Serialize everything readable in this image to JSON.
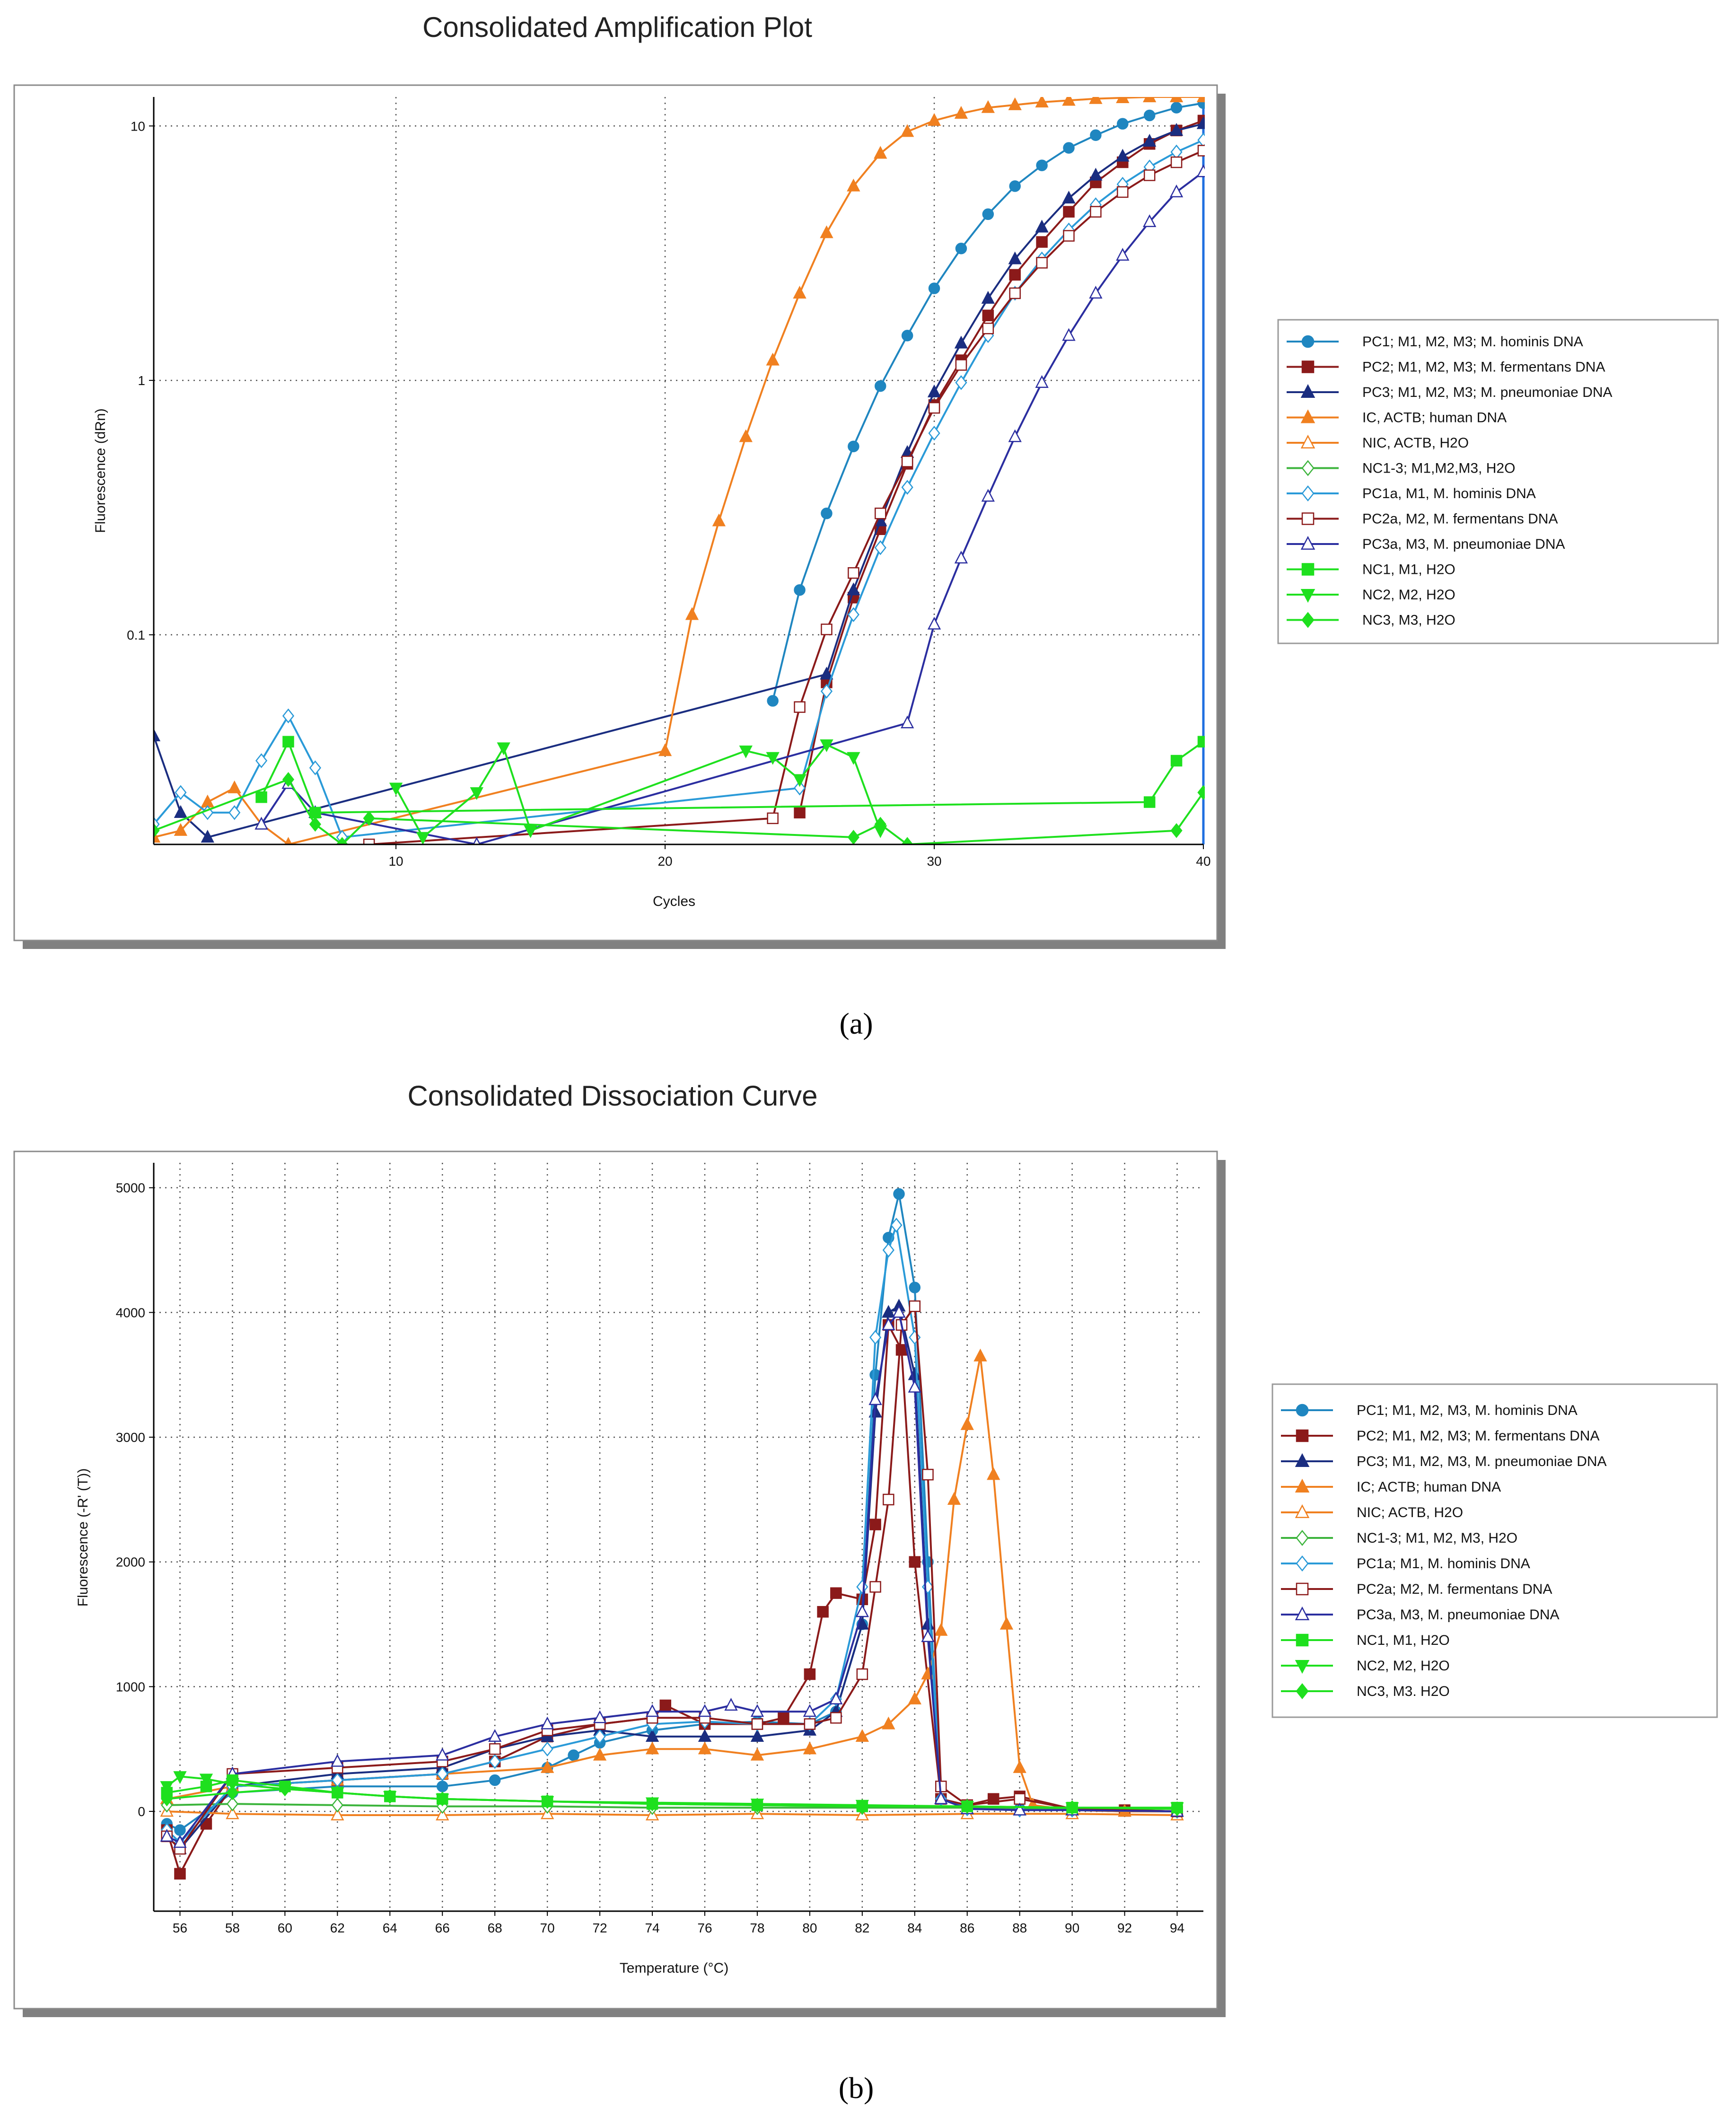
{
  "chart_data": [
    {
      "type": "line",
      "panel_caption": "(a)",
      "title": "Consolidated Amplification Plot",
      "xlabel": "Cycles",
      "ylabel": "Fluorescence (dRn)",
      "yscale": "log",
      "xlim": [
        1,
        40
      ],
      "ylim": [
        0.015,
        13
      ],
      "x_ticks": [
        "10",
        "20",
        "30",
        "40"
      ],
      "y_ticks": [
        "0.1",
        "1",
        "10"
      ],
      "grid": true,
      "legend_position": "right",
      "threshold_line_x": 40,
      "series": [
        {
          "name": "PC1; M1, M2, M3; M. hominis DNA",
          "color": "#1f86c0",
          "marker": "circle",
          "filled": true,
          "x": [
            24,
            25,
            26,
            27,
            28,
            29,
            30,
            31,
            32,
            33,
            34,
            35,
            36,
            37,
            38,
            39,
            40
          ],
          "y": [
            0.055,
            0.15,
            0.3,
            0.55,
            0.95,
            1.5,
            2.3,
            3.3,
            4.5,
            5.8,
            7.0,
            8.2,
            9.2,
            10.2,
            11.0,
            11.8,
            12.3
          ]
        },
        {
          "name": "PC2; M1, M2, M3; M. fermentans DNA",
          "color": "#8b1a1a",
          "marker": "square",
          "filled": true,
          "x": [
            25,
            26,
            27,
            28,
            29,
            30,
            31,
            32,
            33,
            34,
            35,
            36,
            37,
            38,
            39,
            40
          ],
          "y": [
            0.02,
            0.065,
            0.14,
            0.26,
            0.47,
            0.8,
            1.2,
            1.8,
            2.6,
            3.5,
            4.6,
            6.0,
            7.2,
            8.5,
            9.6,
            10.5
          ]
        },
        {
          "name": "PC3; M1, M2, M3; M. pneumoniae DNA",
          "color": "#1a2d80",
          "marker": "triangle",
          "filled": true,
          "x": [
            1,
            2,
            3,
            26,
            27,
            28,
            29,
            30,
            31,
            32,
            33,
            34,
            35,
            36,
            37,
            38,
            39,
            40
          ],
          "y": [
            0.04,
            0.02,
            0.016,
            0.07,
            0.15,
            0.28,
            0.52,
            0.9,
            1.4,
            2.1,
            3.0,
            4.0,
            5.2,
            6.4,
            7.6,
            8.7,
            9.6,
            10.2
          ]
        },
        {
          "name": "IC, ACTB; human DNA",
          "color": "#f08020",
          "marker": "triangle",
          "filled": true,
          "x": [
            1,
            2,
            3,
            4,
            5,
            6,
            20,
            21,
            22,
            23,
            24,
            25,
            26,
            27,
            28,
            29,
            30,
            31,
            32,
            33,
            34,
            35,
            36,
            37,
            38,
            39,
            40
          ],
          "y": [
            0.016,
            0.017,
            0.022,
            0.025,
            0.018,
            0.015,
            0.035,
            0.12,
            0.28,
            0.6,
            1.2,
            2.2,
            3.8,
            5.8,
            7.8,
            9.5,
            10.5,
            11.2,
            11.8,
            12.1,
            12.4,
            12.6,
            12.8,
            12.9,
            13.0,
            13.0,
            13.0
          ]
        },
        {
          "name": "NIC, ACTB, H2O",
          "color": "#f08020",
          "marker": "triangle",
          "filled": false,
          "x": [],
          "y": []
        },
        {
          "name": "NC1-3; M1,M2,M3, H2O",
          "color": "#3cb43c",
          "marker": "diamond",
          "filled": false,
          "x": [],
          "y": []
        },
        {
          "name": "PC1a, M1, M. hominis DNA",
          "color": "#2a9ad8",
          "marker": "diamond",
          "filled": false,
          "x": [
            1,
            2,
            3,
            4,
            5,
            6,
            7,
            8,
            25,
            26,
            27,
            28,
            29,
            30,
            31,
            32,
            33,
            34,
            35,
            36,
            37,
            38,
            39,
            40
          ],
          "y": [
            0.018,
            0.024,
            0.02,
            0.02,
            0.032,
            0.048,
            0.03,
            0.016,
            0.025,
            0.06,
            0.12,
            0.22,
            0.38,
            0.62,
            0.98,
            1.5,
            2.2,
            3.0,
            3.9,
            4.9,
            5.9,
            6.9,
            7.9,
            8.8
          ]
        },
        {
          "name": "PC2a, M2, M. fermentans DNA",
          "color": "#8b1a1a",
          "marker": "square",
          "filled": false,
          "x": [
            9,
            24,
            25,
            26,
            27,
            28,
            29,
            30,
            31,
            32,
            33,
            34,
            35,
            36,
            37,
            38,
            39,
            40
          ],
          "y": [
            0.015,
            0.019,
            0.052,
            0.105,
            0.175,
            0.3,
            0.48,
            0.78,
            1.15,
            1.6,
            2.2,
            2.9,
            3.7,
            4.6,
            5.5,
            6.4,
            7.2,
            8.0
          ]
        },
        {
          "name": "PC3a, M3, M. pneumoniae DNA",
          "color": "#2b2ea0",
          "marker": "triangle",
          "filled": false,
          "x": [
            5,
            6,
            7,
            13,
            29,
            30,
            31,
            32,
            33,
            34,
            35,
            36,
            37,
            38,
            39,
            40
          ],
          "y": [
            0.018,
            0.026,
            0.02,
            0.015,
            0.045,
            0.11,
            0.2,
            0.35,
            0.6,
            0.98,
            1.5,
            2.2,
            3.1,
            4.2,
            5.5,
            6.6
          ]
        },
        {
          "name": "NC1, M1, H2O",
          "color": "#1ee01e",
          "marker": "square",
          "filled": true,
          "x": [
            5,
            6,
            7,
            38,
            39,
            40
          ],
          "y": [
            0.023,
            0.038,
            0.02,
            0.022,
            0.032,
            0.038
          ]
        },
        {
          "name": "NC2, M2, H2O",
          "color": "#1ee01e",
          "marker": "triangle-down",
          "filled": true,
          "x": [
            10,
            11,
            13,
            14,
            15,
            23,
            24,
            25,
            26,
            27,
            28
          ],
          "y": [
            0.025,
            0.016,
            0.024,
            0.036,
            0.017,
            0.035,
            0.033,
            0.027,
            0.037,
            0.033,
            0.017
          ]
        },
        {
          "name": "NC3, M3, H2O",
          "color": "#1ee01e",
          "marker": "diamond",
          "filled": true,
          "x": [
            1,
            6,
            7,
            8,
            9,
            27,
            28,
            29,
            39,
            40
          ],
          "y": [
            0.017,
            0.027,
            0.018,
            0.015,
            0.019,
            0.016,
            0.018,
            0.015,
            0.017,
            0.024
          ]
        }
      ]
    },
    {
      "type": "line",
      "panel_caption": "(b)",
      "title": "Consolidated Dissociation Curve",
      "xlabel": "Temperature (°C)",
      "ylabel": "Fluorescence (-R' (T))",
      "xlim": [
        55,
        95
      ],
      "ylim": [
        -800,
        5200
      ],
      "x_ticks": [
        "56",
        "58",
        "60",
        "62",
        "64",
        "66",
        "68",
        "70",
        "72",
        "74",
        "76",
        "78",
        "80",
        "82",
        "84",
        "86",
        "88",
        "90",
        "92",
        "94"
      ],
      "y_ticks": [
        "0",
        "1000",
        "2000",
        "3000",
        "4000",
        "5000"
      ],
      "grid": true,
      "legend_position": "right",
      "series": [
        {
          "name": "PC1; M1, M2, M3, M. hominis DNA",
          "color": "#1f86c0",
          "marker": "circle",
          "filled": true,
          "x": [
            55.5,
            56,
            58,
            62,
            66,
            68,
            70,
            71,
            72,
            74,
            76,
            78,
            80,
            81,
            82,
            82.5,
            83,
            83.4,
            84,
            84.5,
            85,
            86,
            88,
            90,
            92,
            94
          ],
          "y": [
            -100,
            -150,
            150,
            200,
            200,
            250,
            350,
            450,
            550,
            650,
            700,
            720,
            700,
            800,
            1500,
            3500,
            4600,
            4950,
            4200,
            2000,
            100,
            30,
            20,
            10,
            10,
            0
          ]
        },
        {
          "name": "PC2; M1, M2, M3; M. fermentans DNA",
          "color": "#8b1a1a",
          "marker": "square",
          "filled": true,
          "x": [
            55.5,
            56,
            57,
            58,
            62,
            66,
            68,
            70,
            72,
            74,
            74.5,
            76,
            78,
            79,
            80,
            80.5,
            81,
            82,
            82.5,
            83,
            83.5,
            84,
            85,
            86,
            87,
            88,
            90,
            92,
            94
          ],
          "y": [
            -150,
            -500,
            -100,
            200,
            250,
            300,
            400,
            600,
            700,
            750,
            850,
            700,
            700,
            750,
            1100,
            1600,
            1750,
            1700,
            2300,
            3900,
            3700,
            2000,
            100,
            50,
            100,
            120,
            20,
            10,
            0
          ]
        },
        {
          "name": "PC3; M1, M2, M3, M. pneumoniae DNA",
          "color": "#1a2d80",
          "marker": "triangle",
          "filled": true,
          "x": [
            55.5,
            56,
            58,
            62,
            66,
            68,
            70,
            72,
            74,
            76,
            78,
            80,
            81,
            82,
            82.5,
            83,
            83.4,
            84,
            84.5,
            85,
            86,
            88,
            90,
            92,
            94
          ],
          "y": [
            -200,
            -300,
            200,
            300,
            350,
            500,
            600,
            650,
            600,
            600,
            600,
            650,
            800,
            1500,
            3200,
            4000,
            4050,
            3500,
            1500,
            100,
            20,
            10,
            10,
            0,
            0
          ]
        },
        {
          "name": "IC; ACTB; human DNA",
          "color": "#f08020",
          "marker": "triangle",
          "filled": true,
          "x": [
            55.5,
            58,
            62,
            66,
            70,
            72,
            74,
            76,
            78,
            80,
            82,
            83,
            84,
            84.5,
            85,
            85.5,
            86,
            86.5,
            87,
            87.5,
            88,
            88.5,
            90,
            92,
            94
          ],
          "y": [
            100,
            200,
            250,
            300,
            350,
            450,
            500,
            500,
            450,
            500,
            600,
            700,
            900,
            1100,
            1450,
            2500,
            3100,
            3650,
            2700,
            1500,
            350,
            50,
            10,
            0,
            0
          ]
        },
        {
          "name": "NIC; ACTB, H2O",
          "color": "#f08020",
          "marker": "triangle",
          "filled": false,
          "x": [
            55.5,
            58,
            62,
            66,
            70,
            74,
            78,
            82,
            86,
            90,
            94
          ],
          "y": [
            0,
            -20,
            -30,
            -30,
            -20,
            -30,
            -20,
            -30,
            -20,
            -20,
            -30
          ]
        },
        {
          "name": "NC1-3; M1, M2, M3, H2O",
          "color": "#3cb43c",
          "marker": "diamond",
          "filled": false,
          "x": [
            55.5,
            58,
            62,
            66,
            70,
            74,
            78,
            82,
            86,
            90,
            94
          ],
          "y": [
            50,
            60,
            50,
            40,
            40,
            30,
            30,
            30,
            30,
            20,
            20
          ]
        },
        {
          "name": "PC1a; M1, M. hominis DNA",
          "color": "#2a9ad8",
          "marker": "diamond",
          "filled": false,
          "x": [
            55.5,
            56,
            58,
            62,
            66,
            68,
            70,
            72,
            74,
            76,
            78,
            80,
            81,
            82,
            82.5,
            83,
            83.3,
            84,
            84.5,
            85,
            86,
            88,
            90,
            94
          ],
          "y": [
            -150,
            -250,
            200,
            250,
            300,
            400,
            500,
            600,
            700,
            720,
            700,
            700,
            900,
            1800,
            3800,
            4500,
            4700,
            3800,
            1800,
            100,
            20,
            10,
            10,
            0
          ]
        },
        {
          "name": "PC2a; M2, M. fermentans DNA",
          "color": "#8b1a1a",
          "marker": "square",
          "filled": false,
          "x": [
            55.5,
            56,
            58,
            62,
            66,
            68,
            70,
            72,
            74,
            76,
            78,
            80,
            81,
            82,
            82.5,
            83,
            83.5,
            84,
            84.5,
            85,
            86,
            88,
            90,
            94
          ],
          "y": [
            -200,
            -300,
            300,
            350,
            400,
            500,
            650,
            700,
            750,
            750,
            700,
            700,
            750,
            1100,
            1800,
            2500,
            3900,
            4050,
            2700,
            200,
            50,
            100,
            20,
            0
          ]
        },
        {
          "name": "PC3a, M3, M. pneumoniae DNA",
          "color": "#2b2ea0",
          "marker": "triangle",
          "filled": false,
          "x": [
            55.5,
            56,
            58,
            62,
            66,
            68,
            70,
            72,
            74,
            76,
            77,
            78,
            80,
            81,
            82,
            82.5,
            83,
            83.4,
            84,
            84.5,
            85,
            86,
            88,
            90,
            94
          ],
          "y": [
            -200,
            -250,
            300,
            400,
            450,
            600,
            700,
            750,
            800,
            800,
            850,
            800,
            800,
            900,
            1600,
            3300,
            3900,
            4000,
            3400,
            1400,
            100,
            20,
            10,
            10,
            0
          ]
        },
        {
          "name": "NC1, M1, H2O",
          "color": "#1ee01e",
          "marker": "square",
          "filled": true,
          "x": [
            55.5,
            57,
            58,
            60,
            62,
            64,
            66,
            70,
            74,
            78,
            82,
            86,
            90,
            94
          ],
          "y": [
            150,
            200,
            250,
            200,
            150,
            120,
            100,
            80,
            60,
            50,
            40,
            40,
            30,
            30
          ]
        },
        {
          "name": "NC2, M2, H2O",
          "color": "#1ee01e",
          "marker": "triangle-down",
          "filled": true,
          "x": [
            55.5,
            56,
            57,
            58,
            60,
            62,
            64,
            66,
            70,
            74,
            78,
            82,
            86,
            90,
            94
          ],
          "y": [
            200,
            280,
            260,
            220,
            180,
            150,
            120,
            100,
            80,
            70,
            60,
            50,
            40,
            30,
            30
          ]
        },
        {
          "name": "NC3, M3. H2O",
          "color": "#1ee01e",
          "marker": "diamond",
          "filled": true,
          "x": [
            55.5,
            58,
            60,
            62,
            64,
            66,
            70,
            74,
            78,
            82,
            86,
            90,
            94
          ],
          "y": [
            100,
            150,
            180,
            150,
            120,
            100,
            80,
            60,
            50,
            40,
            40,
            30,
            20
          ]
        }
      ]
    }
  ]
}
